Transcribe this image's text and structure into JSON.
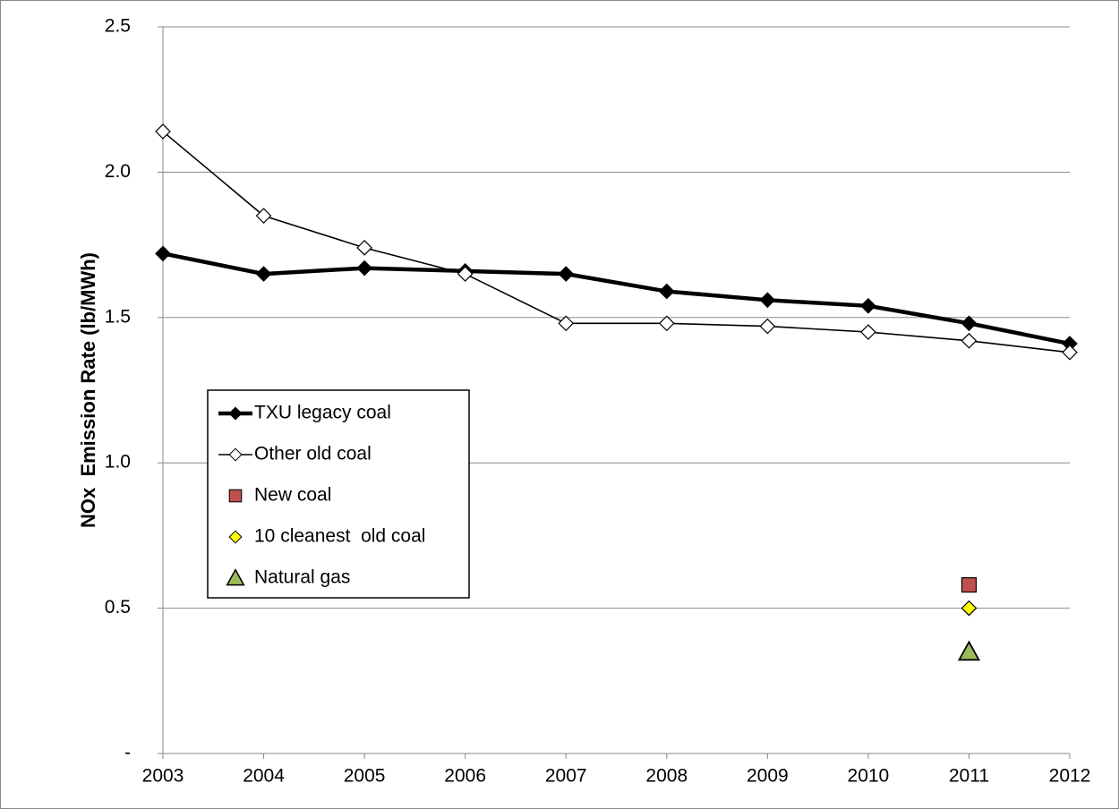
{
  "chart_data": {
    "type": "line",
    "y_label": "NOx  Emission Rate (lb/MWh)",
    "xlim": [
      2003,
      2012
    ],
    "xticks": [
      2003,
      2004,
      2005,
      2006,
      2007,
      2008,
      2009,
      2010,
      2011,
      2012
    ],
    "ylim": [
      0,
      2.5
    ],
    "yticks": [
      {
        "value": 0,
        "label": "-"
      },
      0.5,
      {
        "value": 1,
        "label": "1.0"
      },
      1.5,
      {
        "value": 2,
        "label": "2.0"
      },
      2.5
    ],
    "grid": true,
    "legend": "center-left",
    "series": [
      {
        "name": "TXU legacy coal",
        "color": "#000000",
        "marker": "diamond",
        "line_style": "bold",
        "x": [
          2003,
          2004,
          2005,
          2006,
          2007,
          2008,
          2009,
          2010,
          2011,
          2012
        ],
        "values": [
          1.72,
          1.65,
          1.67,
          1.66,
          1.65,
          1.59,
          1.56,
          1.54,
          1.48,
          1.41
        ]
      },
      {
        "name": "Other old coal",
        "color": "#ffffff",
        "marker": "diamond",
        "line_style": "thin",
        "x": [
          2003,
          2004,
          2005,
          2006,
          2007,
          2008,
          2009,
          2010,
          2011,
          2012
        ],
        "values": [
          2.14,
          1.85,
          1.74,
          1.65,
          1.48,
          1.48,
          1.47,
          1.45,
          1.42,
          1.38
        ]
      },
      {
        "name": "New coal",
        "color": "#c0504d",
        "marker": "square",
        "line_style": "none",
        "x": [
          2011
        ],
        "values": [
          0.58
        ]
      },
      {
        "name": "10 cleanest  old coal",
        "color": "#ffff00",
        "marker": "diamond",
        "line_style": "none",
        "x": [
          2011
        ],
        "values": [
          0.5
        ]
      },
      {
        "name": "Natural gas",
        "color": "#9bbb59",
        "marker": "triangle",
        "line_style": "none",
        "x": [
          2011
        ],
        "values": [
          0.35
        ]
      }
    ]
  }
}
